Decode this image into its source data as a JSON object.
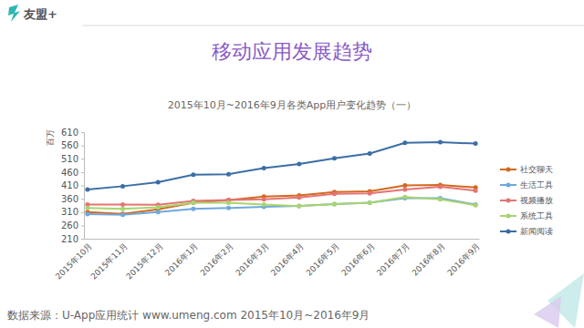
{
  "header": {
    "logo": "友盟+",
    "title": "移动应用发展趋势"
  },
  "chart_data": {
    "type": "line",
    "title": "2015年10月~2016年9月各类App用户变化趋势（一）",
    "y_label": "百万",
    "categories": [
      "2015年10月",
      "2015年11月",
      "2015年12月",
      "2016年1月",
      "2016年2月",
      "2016年3月",
      "2016年4月",
      "2016年5月",
      "2016年6月",
      "2016年7月",
      "2016年8月",
      "2016年9月"
    ],
    "series": [
      {
        "name": "社交聊天",
        "color": "#d2691e",
        "values": [
          310,
          303,
          320,
          345,
          355,
          368,
          372,
          385,
          388,
          410,
          412,
          402
        ]
      },
      {
        "name": "生活工具",
        "color": "#6fa8dc",
        "values": [
          302,
          300,
          310,
          322,
          325,
          330,
          333,
          340,
          345,
          362,
          362,
          338
        ]
      },
      {
        "name": "视频播放",
        "color": "#e57373",
        "values": [
          338,
          338,
          337,
          352,
          355,
          358,
          365,
          378,
          380,
          395,
          405,
          390
        ]
      },
      {
        "name": "系统工具",
        "color": "#a8d46f",
        "values": [
          325,
          322,
          328,
          345,
          345,
          338,
          332,
          340,
          345,
          366,
          358,
          336
        ]
      },
      {
        "name": "新闻阅读",
        "color": "#3b6ea5",
        "values": [
          395,
          407,
          422,
          450,
          452,
          475,
          490,
          512,
          530,
          570,
          572,
          567
        ]
      }
    ],
    "ylim": [
      210,
      610
    ],
    "yticks": [
      210,
      260,
      310,
      360,
      410,
      460,
      510,
      560,
      610
    ],
    "grid": false,
    "legend": "right",
    "marker": "circle"
  },
  "footer": {
    "source": "数据来源：U-App应用统计 www.umeng.com 2015年10月~2016年9月"
  }
}
